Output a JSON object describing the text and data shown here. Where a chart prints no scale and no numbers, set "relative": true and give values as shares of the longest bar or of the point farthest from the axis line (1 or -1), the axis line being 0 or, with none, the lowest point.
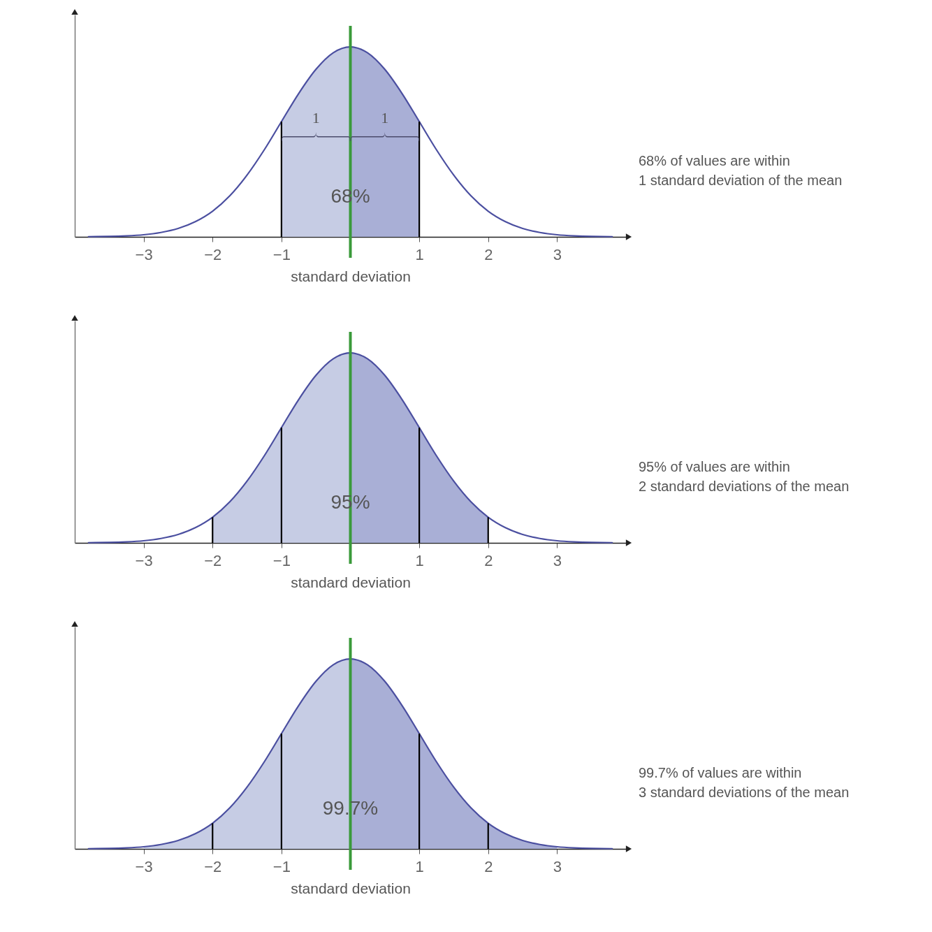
{
  "chart_data": [
    {
      "type": "line",
      "relative": true,
      "xlabel": "standard deviation",
      "xlim": [
        -4,
        4
      ],
      "xticks": [
        -3,
        -2,
        -1,
        1,
        2,
        3
      ],
      "tick_labels": "x",
      "series": [
        {
          "type": "area",
          "color": "#c6cce4",
          "x": [
            -1,
            -0.75,
            -0.5,
            -0.25,
            0
          ],
          "values": [
            0.607,
            0.755,
            0.882,
            0.969,
            1
          ]
        },
        {
          "type": "area",
          "color": "#a9afd6",
          "x": [
            0,
            0.25,
            0.5,
            0.75,
            1
          ],
          "values": [
            1,
            0.969,
            0.882,
            0.755,
            0.607
          ]
        },
        {
          "type": "line",
          "color": "#4b4fa0",
          "x": [
            -3.8,
            -3.5,
            -3.25,
            -3,
            -2.75,
            -2.5,
            -2.25,
            -2,
            -1.75,
            -1.5,
            -1.25,
            -1,
            -0.75,
            -0.5,
            -0.25,
            0,
            0.25,
            0.5,
            0.75,
            1,
            1.25,
            1.5,
            1.75,
            2,
            2.25,
            2.5,
            2.75,
            3,
            3.25,
            3.5,
            3.8
          ],
          "values": [
            0.001,
            0.002,
            0.005,
            0.011,
            0.023,
            0.044,
            0.08,
            0.135,
            0.216,
            0.325,
            0.458,
            0.607,
            0.755,
            0.882,
            0.969,
            1,
            0.969,
            0.882,
            0.755,
            0.607,
            0.458,
            0.325,
            0.216,
            0.135,
            0.08,
            0.044,
            0.023,
            0.011,
            0.005,
            0.002,
            0.001
          ]
        }
      ],
      "ref_lines": [
        {
          "axis": "x",
          "value": -1,
          "color": "#000000"
        },
        {
          "axis": "x",
          "value": 1,
          "color": "#000000"
        },
        {
          "axis": "x",
          "value": 0,
          "color": "#3a9a3a"
        }
      ],
      "annotations": [
        "68%",
        "68% of values are within\n1 standard deviation of the mean",
        "1",
        "1"
      ]
    },
    {
      "type": "line",
      "relative": true,
      "xlabel": "standard deviation",
      "xlim": [
        -4,
        4
      ],
      "xticks": [
        -3,
        -2,
        -1,
        1,
        2,
        3
      ],
      "tick_labels": "x",
      "series": [
        {
          "type": "area",
          "color": "#c6cce4",
          "x": [
            -2,
            -1.75,
            -1.5,
            -1.25,
            -1,
            -0.75,
            -0.5,
            -0.25,
            0
          ],
          "values": [
            0.135,
            0.216,
            0.325,
            0.458,
            0.607,
            0.755,
            0.882,
            0.969,
            1
          ]
        },
        {
          "type": "area",
          "color": "#a9afd6",
          "x": [
            0,
            0.25,
            0.5,
            0.75,
            1,
            1.25,
            1.5,
            1.75,
            2
          ],
          "values": [
            1,
            0.969,
            0.882,
            0.755,
            0.607,
            0.458,
            0.325,
            0.216,
            0.135
          ]
        },
        {
          "type": "line",
          "color": "#4b4fa0",
          "x": [
            -3.8,
            -3.5,
            -3.25,
            -3,
            -2.75,
            -2.5,
            -2.25,
            -2,
            -1.75,
            -1.5,
            -1.25,
            -1,
            -0.75,
            -0.5,
            -0.25,
            0,
            0.25,
            0.5,
            0.75,
            1,
            1.25,
            1.5,
            1.75,
            2,
            2.25,
            2.5,
            2.75,
            3,
            3.25,
            3.5,
            3.8
          ],
          "values": [
            0.001,
            0.002,
            0.005,
            0.011,
            0.023,
            0.044,
            0.08,
            0.135,
            0.216,
            0.325,
            0.458,
            0.607,
            0.755,
            0.882,
            0.969,
            1,
            0.969,
            0.882,
            0.755,
            0.607,
            0.458,
            0.325,
            0.216,
            0.135,
            0.08,
            0.044,
            0.023,
            0.011,
            0.005,
            0.002,
            0.001
          ]
        }
      ],
      "ref_lines": [
        {
          "axis": "x",
          "value": -2,
          "color": "#000000"
        },
        {
          "axis": "x",
          "value": -1,
          "color": "#000000"
        },
        {
          "axis": "x",
          "value": 1,
          "color": "#000000"
        },
        {
          "axis": "x",
          "value": 2,
          "color": "#000000"
        },
        {
          "axis": "x",
          "value": 0,
          "color": "#3a9a3a"
        }
      ],
      "annotations": [
        "95%",
        "95% of values are within\n2 standard deviations of the mean"
      ]
    },
    {
      "type": "line",
      "relative": true,
      "xlabel": "standard deviation",
      "xlim": [
        -4,
        4
      ],
      "xticks": [
        -3,
        -2,
        -1,
        1,
        2,
        3
      ],
      "tick_labels": "x",
      "series": [
        {
          "type": "area",
          "color": "#c6cce4",
          "x": [
            -3,
            -2.75,
            -2.5,
            -2.25,
            -2,
            -1.75,
            -1.5,
            -1.25,
            -1,
            -0.75,
            -0.5,
            -0.25,
            0
          ],
          "values": [
            0.011,
            0.023,
            0.044,
            0.08,
            0.135,
            0.216,
            0.325,
            0.458,
            0.607,
            0.755,
            0.882,
            0.969,
            1
          ]
        },
        {
          "type": "area",
          "color": "#a9afd6",
          "x": [
            0,
            0.25,
            0.5,
            0.75,
            1,
            1.25,
            1.5,
            1.75,
            2,
            2.25,
            2.5,
            2.75,
            3
          ],
          "values": [
            1,
            0.969,
            0.882,
            0.755,
            0.607,
            0.458,
            0.325,
            0.216,
            0.135,
            0.08,
            0.044,
            0.023,
            0.011
          ]
        },
        {
          "type": "line",
          "color": "#4b4fa0",
          "x": [
            -3.8,
            -3.5,
            -3.25,
            -3,
            -2.75,
            -2.5,
            -2.25,
            -2,
            -1.75,
            -1.5,
            -1.25,
            -1,
            -0.75,
            -0.5,
            -0.25,
            0,
            0.25,
            0.5,
            0.75,
            1,
            1.25,
            1.5,
            1.75,
            2,
            2.25,
            2.5,
            2.75,
            3,
            3.25,
            3.5,
            3.8
          ],
          "values": [
            0.001,
            0.002,
            0.005,
            0.011,
            0.023,
            0.044,
            0.08,
            0.135,
            0.216,
            0.325,
            0.458,
            0.607,
            0.755,
            0.882,
            0.969,
            1,
            0.969,
            0.882,
            0.755,
            0.607,
            0.458,
            0.325,
            0.216,
            0.135,
            0.08,
            0.044,
            0.023,
            0.011,
            0.005,
            0.002,
            0.001
          ]
        }
      ],
      "ref_lines": [
        {
          "axis": "x",
          "value": -2,
          "color": "#000000"
        },
        {
          "axis": "x",
          "value": -1,
          "color": "#000000"
        },
        {
          "axis": "x",
          "value": 1,
          "color": "#000000"
        },
        {
          "axis": "x",
          "value": 2,
          "color": "#000000"
        },
        {
          "axis": "x",
          "value": 0,
          "color": "#3a9a3a"
        }
      ],
      "annotations": [
        "99.7%",
        "99.7% of values are within\n3 standard deviations of the mean"
      ]
    }
  ]
}
